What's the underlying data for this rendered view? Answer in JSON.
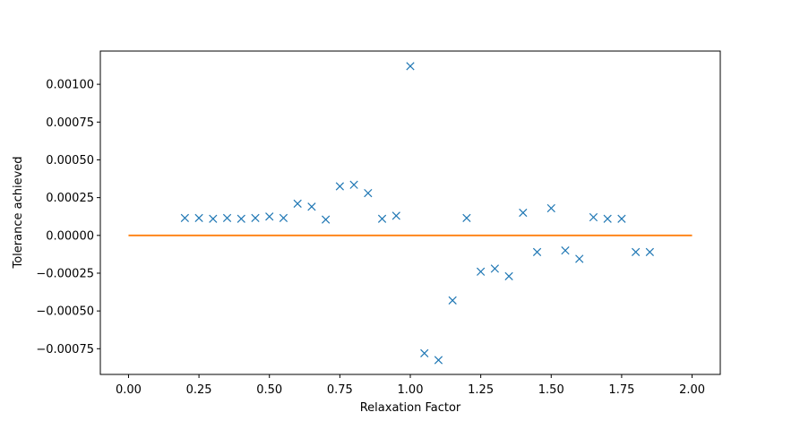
{
  "chart_data": {
    "type": "scatter",
    "title": "",
    "xlabel": "Relaxation Factor",
    "ylabel": "Tolerance achieved",
    "xlim": [
      -0.1,
      2.1
    ],
    "ylim": [
      -0.00092,
      0.00122
    ],
    "xticks": [
      0.0,
      0.25,
      0.5,
      0.75,
      1.0,
      1.25,
      1.5,
      1.75,
      2.0
    ],
    "xtick_labels": [
      "0.00",
      "0.25",
      "0.50",
      "0.75",
      "1.00",
      "1.25",
      "1.50",
      "1.75",
      "2.00"
    ],
    "yticks": [
      -0.00075,
      -0.0005,
      -0.00025,
      0.0,
      0.00025,
      0.0005,
      0.00075,
      0.001
    ],
    "ytick_labels": [
      "−0.00075",
      "−0.00050",
      "−0.00025",
      "0.00000",
      "0.00025",
      "0.00050",
      "0.00075",
      "0.00100"
    ],
    "grid": false,
    "series": [
      {
        "marker": "x",
        "color": "#1f77b4",
        "x": [
          0.2,
          0.25,
          0.3,
          0.35,
          0.4,
          0.45,
          0.5,
          0.55,
          0.6,
          0.65,
          0.7,
          0.75,
          0.8,
          0.85,
          0.9,
          0.95,
          1.0,
          1.05,
          1.1,
          1.15,
          1.2,
          1.25,
          1.3,
          1.35,
          1.4,
          1.45,
          1.5,
          1.55,
          1.6,
          1.65,
          1.7,
          1.75,
          1.8,
          1.85
        ],
        "y": [
          0.000115,
          0.000115,
          0.00011,
          0.000115,
          0.00011,
          0.000115,
          0.000125,
          0.000115,
          0.00021,
          0.00019,
          0.000105,
          0.000325,
          0.000335,
          0.00028,
          0.00011,
          0.00013,
          0.00112,
          -0.00078,
          -0.000825,
          -0.00043,
          0.000115,
          -0.00024,
          -0.00022,
          -0.00027,
          0.00015,
          -0.00011,
          0.00018,
          -0.0001,
          -0.000155,
          0.00012,
          0.00011,
          0.00011,
          -0.00011,
          -0.00011
        ]
      },
      {
        "type": "line",
        "color": "#ff7f0e",
        "x": [
          0.0,
          2.0
        ],
        "y": [
          0.0,
          0.0
        ]
      }
    ]
  }
}
